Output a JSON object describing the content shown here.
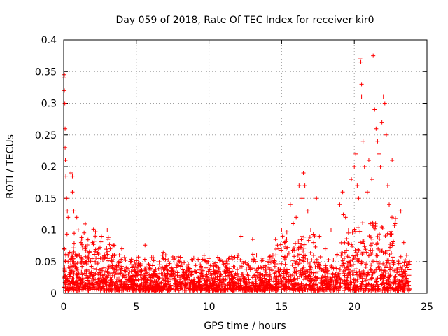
{
  "chart_data": {
    "type": "scatter",
    "title": "Day 059 of 2018, Rate Of TEC Index for receiver kir0",
    "xlabel": "GPS time / hours",
    "ylabel": "ROTI / TECUs",
    "xlim": [
      0,
      25
    ],
    "ylim": [
      0,
      0.4
    ],
    "xticks": [
      {
        "value": 0,
        "label": "0"
      },
      {
        "value": 5,
        "label": "5"
      },
      {
        "value": 10,
        "label": "10"
      },
      {
        "value": 15,
        "label": "15"
      },
      {
        "value": 20,
        "label": "20"
      },
      {
        "value": 25,
        "label": "25"
      }
    ],
    "yticks": [
      {
        "value": 0,
        "label": "0"
      },
      {
        "value": 0.05,
        "label": "0.05"
      },
      {
        "value": 0.1,
        "label": "0.1"
      },
      {
        "value": 0.15,
        "label": "0.15"
      },
      {
        "value": 0.2,
        "label": "0.2"
      },
      {
        "value": 0.25,
        "label": "0.25"
      },
      {
        "value": 0.3,
        "label": "0.3"
      },
      {
        "value": 0.35,
        "label": "0.35"
      },
      {
        "value": 0.4,
        "label": "0.4"
      }
    ],
    "grid": true,
    "marker": "plus",
    "color": "#ff0000",
    "series": [
      {
        "points": [
          [
            0.0,
            0.34
          ],
          [
            0.05,
            0.345
          ],
          [
            0.05,
            0.32
          ],
          [
            0.08,
            0.3
          ],
          [
            0.1,
            0.26
          ],
          [
            0.1,
            0.23
          ],
          [
            0.12,
            0.21
          ],
          [
            0.15,
            0.185
          ],
          [
            0.2,
            0.15
          ],
          [
            0.25,
            0.13
          ],
          [
            0.3,
            0.12
          ],
          [
            0.5,
            0.19
          ],
          [
            0.6,
            0.185
          ],
          [
            0.6,
            0.16
          ],
          [
            0.7,
            0.13
          ],
          [
            0.9,
            0.12
          ],
          [
            1.0,
            0.1
          ],
          [
            1.2,
            0.08
          ],
          [
            0.15,
            0.06
          ],
          [
            0.3,
            0.05
          ],
          [
            0.4,
            0.04
          ],
          [
            0.5,
            0.03
          ],
          [
            0.7,
            0.05
          ],
          [
            0.9,
            0.04
          ],
          [
            1.1,
            0.06
          ],
          [
            1.3,
            0.05
          ],
          [
            1.5,
            0.07
          ],
          [
            1.7,
            0.06
          ],
          [
            2.0,
            0.08
          ],
          [
            2.1,
            0.05
          ],
          [
            2.4,
            0.07
          ],
          [
            2.6,
            0.09
          ],
          [
            2.8,
            0.06
          ],
          [
            3.0,
            0.1
          ],
          [
            3.2,
            0.07
          ],
          [
            3.5,
            0.06
          ],
          [
            3.8,
            0.05
          ],
          [
            4.0,
            0.07
          ],
          [
            4.3,
            0.04
          ],
          [
            4.6,
            0.05
          ],
          [
            5.0,
            0.04
          ],
          [
            5.3,
            0.035
          ],
          [
            5.6,
            0.076
          ],
          [
            5.9,
            0.04
          ],
          [
            6.2,
            0.03
          ],
          [
            6.6,
            0.045
          ],
          [
            7.0,
            0.04
          ],
          [
            7.4,
            0.035
          ],
          [
            7.8,
            0.045
          ],
          [
            8.2,
            0.03
          ],
          [
            8.6,
            0.04
          ],
          [
            9.0,
            0.035
          ],
          [
            9.4,
            0.045
          ],
          [
            9.8,
            0.04
          ],
          [
            10.0,
            0.055
          ],
          [
            10.4,
            0.035
          ],
          [
            10.8,
            0.03
          ],
          [
            11.2,
            0.04
          ],
          [
            11.6,
            0.035
          ],
          [
            12.0,
            0.06
          ],
          [
            12.2,
            0.09
          ],
          [
            12.4,
            0.05
          ],
          [
            12.8,
            0.04
          ],
          [
            13.2,
            0.05
          ],
          [
            13.0,
            0.085
          ],
          [
            13.6,
            0.04
          ],
          [
            14.0,
            0.05
          ],
          [
            14.4,
            0.06
          ],
          [
            14.8,
            0.07
          ],
          [
            15.0,
            0.1
          ],
          [
            15.2,
            0.08
          ],
          [
            15.4,
            0.06
          ],
          [
            15.6,
            0.14
          ],
          [
            15.8,
            0.11
          ],
          [
            16.0,
            0.12
          ],
          [
            16.2,
            0.17
          ],
          [
            16.4,
            0.15
          ],
          [
            16.5,
            0.19
          ],
          [
            16.6,
            0.17
          ],
          [
            16.8,
            0.13
          ],
          [
            17.0,
            0.1
          ],
          [
            17.2,
            0.08
          ],
          [
            17.4,
            0.15
          ],
          [
            17.6,
            0.09
          ],
          [
            18.0,
            0.07
          ],
          [
            18.4,
            0.1
          ],
          [
            18.8,
            0.06
          ],
          [
            19.0,
            0.14
          ],
          [
            19.2,
            0.16
          ],
          [
            19.4,
            0.12
          ],
          [
            19.6,
            0.1
          ],
          [
            19.8,
            0.18
          ],
          [
            20.0,
            0.2
          ],
          [
            20.1,
            0.22
          ],
          [
            20.2,
            0.17
          ],
          [
            20.3,
            0.15
          ],
          [
            20.4,
            0.37
          ],
          [
            20.45,
            0.365
          ],
          [
            20.5,
            0.33
          ],
          [
            20.5,
            0.31
          ],
          [
            20.6,
            0.24
          ],
          [
            20.7,
            0.2
          ],
          [
            20.9,
            0.16
          ],
          [
            21.0,
            0.21
          ],
          [
            21.2,
            0.18
          ],
          [
            21.3,
            0.375
          ],
          [
            21.4,
            0.29
          ],
          [
            21.5,
            0.26
          ],
          [
            21.6,
            0.24
          ],
          [
            21.7,
            0.22
          ],
          [
            21.8,
            0.2
          ],
          [
            21.9,
            0.27
          ],
          [
            22.0,
            0.31
          ],
          [
            22.1,
            0.3
          ],
          [
            22.2,
            0.25
          ],
          [
            22.3,
            0.17
          ],
          [
            22.4,
            0.14
          ],
          [
            22.6,
            0.21
          ],
          [
            22.8,
            0.11
          ],
          [
            23.0,
            0.1
          ],
          [
            23.2,
            0.13
          ],
          [
            23.4,
            0.08
          ],
          [
            23.6,
            0.06
          ],
          [
            23.8,
            0.05
          ],
          [
            19.5,
            0.04
          ],
          [
            20.5,
            0.05
          ],
          [
            21.5,
            0.06
          ],
          [
            22.5,
            0.04
          ],
          [
            23.0,
            0.03
          ],
          [
            16.0,
            0.05
          ],
          [
            17.0,
            0.04
          ],
          [
            18.0,
            0.035
          ],
          [
            14.0,
            0.03
          ],
          [
            13.0,
            0.025
          ],
          [
            11.0,
            0.02
          ],
          [
            9.0,
            0.018
          ],
          [
            7.0,
            0.02
          ],
          [
            5.0,
            0.02
          ],
          [
            3.0,
            0.025
          ],
          [
            1.0,
            0.02
          ],
          [
            0.5,
            0.015
          ],
          [
            2.0,
            0.015
          ],
          [
            4.0,
            0.012
          ],
          [
            6.0,
            0.01
          ],
          [
            8.0,
            0.012
          ],
          [
            10.0,
            0.01
          ],
          [
            12.0,
            0.015
          ],
          [
            15.0,
            0.02
          ],
          [
            18.5,
            0.025
          ],
          [
            21.0,
            0.03
          ],
          [
            23.5,
            0.02
          ]
        ]
      }
    ]
  }
}
